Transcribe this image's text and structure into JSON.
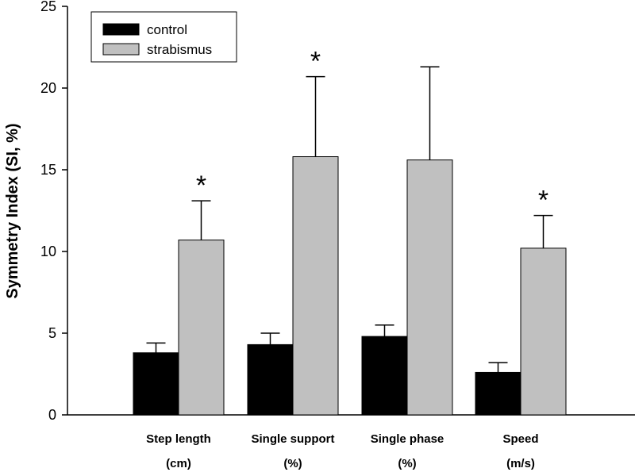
{
  "chart_data": {
    "type": "bar",
    "title": "",
    "xlabel": "",
    "ylabel": "Symmetry Index (SI, %)",
    "ylim": [
      0,
      25
    ],
    "yticks": [
      0,
      5,
      10,
      15,
      20,
      25
    ],
    "grid": false,
    "legend_placement": "top-left",
    "categories": [
      {
        "line1": "Step length",
        "line2": "(cm)"
      },
      {
        "line1": "Single support",
        "line2": "(%)"
      },
      {
        "line1": "Single phase",
        "line2": "(%)"
      },
      {
        "line1": "Speed",
        "line2": "(m/s)"
      }
    ],
    "series": [
      {
        "name": "control",
        "color": "#000000",
        "values": [
          3.8,
          4.3,
          4.8,
          2.6
        ],
        "error": [
          0.6,
          0.7,
          0.7,
          0.6
        ]
      },
      {
        "name": "strabismus",
        "color": "#c0c0c0",
        "values": [
          10.7,
          15.8,
          15.6,
          10.2
        ],
        "error": [
          2.4,
          4.9,
          5.7,
          2.0
        ]
      }
    ],
    "annotations": [
      {
        "category_index": 0,
        "text": "*"
      },
      {
        "category_index": 1,
        "text": "*"
      },
      {
        "category_index": 3,
        "text": "*"
      }
    ]
  }
}
